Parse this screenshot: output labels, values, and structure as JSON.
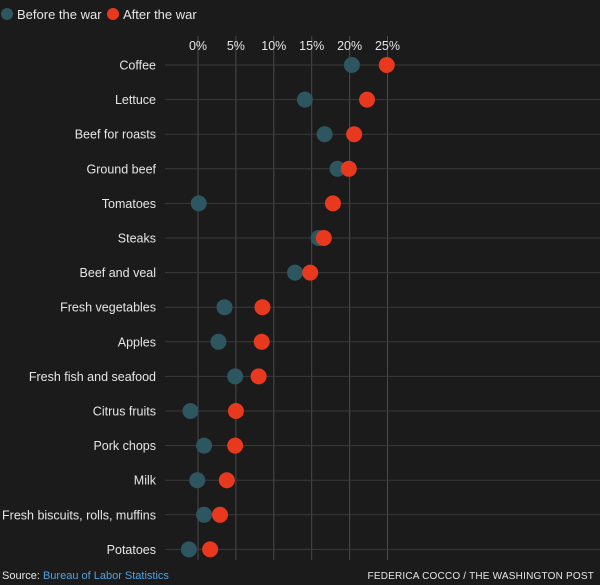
{
  "colors": {
    "before": "#2e5660",
    "after": "#e8391f",
    "background": "#1b1b1b"
  },
  "legend": {
    "before_label": "Before the war",
    "after_label": "After the war"
  },
  "footer": {
    "source_prefix": "Source: ",
    "source_link": "Bureau of Labor Statistics",
    "credit": "FEDERICA COCCO / THE WASHINGTON POST"
  },
  "chart_data": {
    "type": "scatter",
    "xlim": [
      -2,
      26
    ],
    "xticks": [
      0,
      5,
      10,
      15,
      20,
      25
    ],
    "xtick_labels": [
      "0%",
      "5%",
      "10%",
      "15%",
      "20%",
      "25%"
    ],
    "xaxis_position": "top",
    "grid": true,
    "legend_position": "top-left",
    "categories": [
      "Coffee",
      "Lettuce",
      "Beef for roasts",
      "Ground beef",
      "Tomatoes",
      "Steaks",
      "Beef and veal",
      "Fresh vegetables",
      "Apples",
      "Fresh fish and seafood",
      "Citrus fruits",
      "Pork chops",
      "Milk",
      "Fresh biscuits, rolls, muffins",
      "Potatoes"
    ],
    "series": [
      {
        "name": "Before the war",
        "values": [
          20.3,
          14.1,
          16.7,
          18.4,
          0.1,
          15.9,
          12.8,
          3.5,
          2.7,
          4.9,
          -1.0,
          0.8,
          -0.1,
          0.8,
          -1.2
        ]
      },
      {
        "name": "After the war",
        "values": [
          24.9,
          22.3,
          20.6,
          19.9,
          17.8,
          16.6,
          14.8,
          8.5,
          8.4,
          8.0,
          5.0,
          4.9,
          3.8,
          2.9,
          1.6
        ]
      }
    ]
  }
}
